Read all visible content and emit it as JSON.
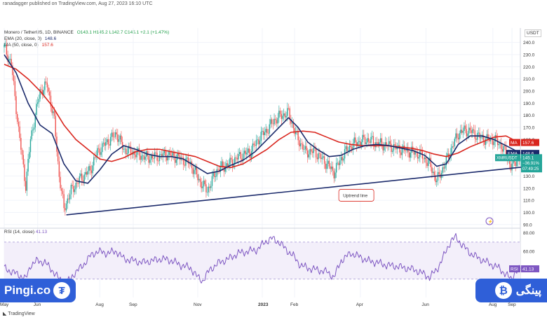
{
  "header": {
    "publisher": "ranadagger published on TradingView.com, Aug 27, 2023 16:10 UTC",
    "symbol": "Monero / TetherUS, 1D, BINANCE",
    "ohlc": "O143.1 H145.2 L142.7 C145.1 +2.1 (+1.47%)",
    "ema_legend": "EMA (20, close, 0)",
    "ema_value": "148.6",
    "ma_legend": "MA (50, close, 0)",
    "ma_value": "157.6",
    "axis_unit": "USDT"
  },
  "badges": {
    "left_text": "Pingi.co",
    "left_coin": "₮",
    "right_text": "پینگی",
    "right_coin": "₿"
  },
  "footer": {
    "tradingview": "TradingView"
  },
  "colors": {
    "up": "#26a69a",
    "down": "#ef5350",
    "ema": "#1b2a6b",
    "ma": "#d9251d",
    "rsi": "#7e57c2",
    "badge": "#2f5fd8"
  },
  "chart_data": [
    {
      "type": "line",
      "title": "Monero / TetherUS, 1D, BINANCE",
      "ylabel": "USDT",
      "ylim": [
        87,
        245
      ],
      "yticks": [
        90,
        100,
        110,
        120,
        130,
        140,
        150,
        160,
        170,
        180,
        190,
        200,
        210,
        220,
        230,
        240
      ],
      "x_labels": [
        "May",
        "Jun",
        "Aug",
        "Sep",
        "Nov",
        "2023",
        "Feb",
        "Apr",
        "Jun",
        "Aug",
        "Sep"
      ],
      "x_label_index": [
        0,
        28,
        80,
        108,
        162,
        216,
        243,
        298,
        353,
        409,
        425
      ],
      "n_days": 433,
      "series": [
        {
          "name": "Price (close)",
          "points": [
            [
              0,
              236
            ],
            [
              6,
              222
            ],
            [
              12,
              168
            ],
            [
              18,
              122
            ],
            [
              22,
              160
            ],
            [
              30,
              200
            ],
            [
              36,
              205
            ],
            [
              42,
              175
            ],
            [
              46,
              130
            ],
            [
              50,
              103
            ],
            [
              56,
              118
            ],
            [
              64,
              128
            ],
            [
              72,
              135
            ],
            [
              78,
              150
            ],
            [
              86,
              158
            ],
            [
              94,
              165
            ],
            [
              100,
              152
            ],
            [
              106,
              150
            ],
            [
              114,
              147
            ],
            [
              120,
              145
            ],
            [
              128,
              146
            ],
            [
              136,
              148
            ],
            [
              146,
              145
            ],
            [
              156,
              140
            ],
            [
              164,
              125
            ],
            [
              170,
              118
            ],
            [
              178,
              135
            ],
            [
              188,
              140
            ],
            [
              198,
              147
            ],
            [
              206,
              150
            ],
            [
              214,
              162
            ],
            [
              220,
              168
            ],
            [
              226,
              176
            ],
            [
              232,
              180
            ],
            [
              238,
              182
            ],
            [
              244,
              164
            ],
            [
              252,
              150
            ],
            [
              260,
              150
            ],
            [
              270,
              140
            ],
            [
              276,
              133
            ],
            [
              284,
              148
            ],
            [
              290,
              155
            ],
            [
              296,
              158
            ],
            [
              304,
              160
            ],
            [
              312,
              157
            ],
            [
              322,
              155
            ],
            [
              332,
              152
            ],
            [
              340,
              150
            ],
            [
              348,
              148
            ],
            [
              356,
              140
            ],
            [
              362,
              126
            ],
            [
              368,
              138
            ],
            [
              374,
              152
            ],
            [
              380,
              165
            ],
            [
              386,
              168
            ],
            [
              392,
              166
            ],
            [
              398,
              162
            ],
            [
              404,
              160
            ],
            [
              410,
              160
            ],
            [
              416,
              155
            ],
            [
              420,
              148
            ],
            [
              424,
              138
            ],
            [
              428,
              142
            ],
            [
              432,
              145.1
            ]
          ]
        },
        {
          "name": "EMA (20, close, 0)",
          "points": [
            [
              0,
              230
            ],
            [
              10,
              215
            ],
            [
              20,
              190
            ],
            [
              30,
              172
            ],
            [
              40,
              165
            ],
            [
              50,
              140
            ],
            [
              60,
              126
            ],
            [
              70,
              124
            ],
            [
              80,
              135
            ],
            [
              90,
              148
            ],
            [
              100,
              155
            ],
            [
              110,
              152
            ],
            [
              120,
              148
            ],
            [
              130,
              146
            ],
            [
              140,
              146
            ],
            [
              150,
              144
            ],
            [
              160,
              138
            ],
            [
              170,
              132
            ],
            [
              180,
              134
            ],
            [
              190,
              139
            ],
            [
              200,
              143
            ],
            [
              210,
              150
            ],
            [
              220,
              160
            ],
            [
              230,
              170
            ],
            [
              238,
              178
            ],
            [
              246,
              170
            ],
            [
              254,
              158
            ],
            [
              262,
              152
            ],
            [
              272,
              146
            ],
            [
              282,
              147
            ],
            [
              292,
              152
            ],
            [
              302,
              155
            ],
            [
              312,
              156
            ],
            [
              322,
              155
            ],
            [
              332,
              153
            ],
            [
              342,
              151
            ],
            [
              352,
              147
            ],
            [
              362,
              138
            ],
            [
              370,
              140
            ],
            [
              380,
              156
            ],
            [
              390,
              163
            ],
            [
              400,
              163
            ],
            [
              410,
              160
            ],
            [
              420,
              155
            ],
            [
              426,
              152
            ],
            [
              432,
              148.6
            ]
          ]
        },
        {
          "name": "MA (50, close, 0)",
          "points": [
            [
              0,
              222
            ],
            [
              10,
              218
            ],
            [
              20,
              210
            ],
            [
              30,
              200
            ],
            [
              40,
              188
            ],
            [
              50,
              172
            ],
            [
              60,
              160
            ],
            [
              70,
              152
            ],
            [
              80,
              144
            ],
            [
              90,
              142
            ],
            [
              100,
              145
            ],
            [
              110,
              150
            ],
            [
              120,
              152
            ],
            [
              130,
              152
            ],
            [
              140,
              150
            ],
            [
              150,
              148
            ],
            [
              160,
              146
            ],
            [
              170,
              142
            ],
            [
              180,
              138
            ],
            [
              190,
              137
            ],
            [
              200,
              140
            ],
            [
              210,
              146
            ],
            [
              220,
              152
            ],
            [
              230,
              160
            ],
            [
              240,
              166
            ],
            [
              250,
              167
            ],
            [
              260,
              166
            ],
            [
              270,
              162
            ],
            [
              280,
              158
            ],
            [
              290,
              156
            ],
            [
              300,
              155
            ],
            [
              310,
              155
            ],
            [
              320,
              155
            ],
            [
              330,
              154
            ],
            [
              340,
              153
            ],
            [
              350,
              151
            ],
            [
              360,
              148
            ],
            [
              370,
              146
            ],
            [
              380,
              149
            ],
            [
              390,
              154
            ],
            [
              400,
              158
            ],
            [
              410,
              162
            ],
            [
              420,
              163
            ],
            [
              426,
              160
            ],
            [
              432,
              157.6
            ]
          ]
        }
      ],
      "trendline": {
        "label": "Uptrend line",
        "from": [
          52,
          98
        ],
        "to": [
          440,
          138
        ]
      },
      "price_labels": [
        {
          "tag": "MA",
          "value": "157.6"
        },
        {
          "tag": "EMA",
          "value": "148.6"
        },
        {
          "tag": "XMRUSDT",
          "value": "145.1",
          "change": "−36.91%",
          "countdown": "07:49:25"
        }
      ]
    },
    {
      "type": "line",
      "title": "RSI (14, close)",
      "value_label": "41.13",
      "ylim": [
        20,
        85
      ],
      "yticks": [
        40,
        60,
        80
      ],
      "ytick_labels": [
        "40.00",
        "60.00",
        "80.00"
      ],
      "band": [
        30,
        70
      ],
      "series": [
        {
          "name": "RSI (14, close)",
          "points": [
            [
              0,
              42
            ],
            [
              6,
              38
            ],
            [
              12,
              35
            ],
            [
              18,
              30
            ],
            [
              22,
              45
            ],
            [
              28,
              50
            ],
            [
              34,
              48
            ],
            [
              40,
              40
            ],
            [
              46,
              30
            ],
            [
              52,
              25
            ],
            [
              58,
              35
            ],
            [
              66,
              45
            ],
            [
              72,
              55
            ],
            [
              78,
              60
            ],
            [
              86,
              58
            ],
            [
              94,
              60
            ],
            [
              100,
              52
            ],
            [
              108,
              50
            ],
            [
              116,
              48
            ],
            [
              124,
              50
            ],
            [
              132,
              52
            ],
            [
              140,
              50
            ],
            [
              148,
              45
            ],
            [
              156,
              42
            ],
            [
              162,
              32
            ],
            [
              166,
              28
            ],
            [
              172,
              40
            ],
            [
              180,
              48
            ],
            [
              188,
              52
            ],
            [
              196,
              58
            ],
            [
              204,
              60
            ],
            [
              212,
              62
            ],
            [
              218,
              70
            ],
            [
              224,
              74
            ],
            [
              230,
              70
            ],
            [
              236,
              62
            ],
            [
              242,
              55
            ],
            [
              248,
              45
            ],
            [
              254,
              42
            ],
            [
              262,
              40
            ],
            [
              270,
              38
            ],
            [
              276,
              32
            ],
            [
              282,
              50
            ],
            [
              290,
              58
            ],
            [
              296,
              55
            ],
            [
              304,
              50
            ],
            [
              312,
              48
            ],
            [
              320,
              45
            ],
            [
              328,
              44
            ],
            [
              336,
              42
            ],
            [
              344,
              40
            ],
            [
              352,
              35
            ],
            [
              356,
              32
            ],
            [
              362,
              40
            ],
            [
              368,
              55
            ],
            [
              374,
              72
            ],
            [
              378,
              75
            ],
            [
              384,
              66
            ],
            [
              390,
              58
            ],
            [
              398,
              52
            ],
            [
              406,
              47
            ],
            [
              414,
              42
            ],
            [
              420,
              35
            ],
            [
              424,
              30
            ],
            [
              428,
              38
            ],
            [
              432,
              41.13
            ]
          ]
        }
      ]
    }
  ]
}
